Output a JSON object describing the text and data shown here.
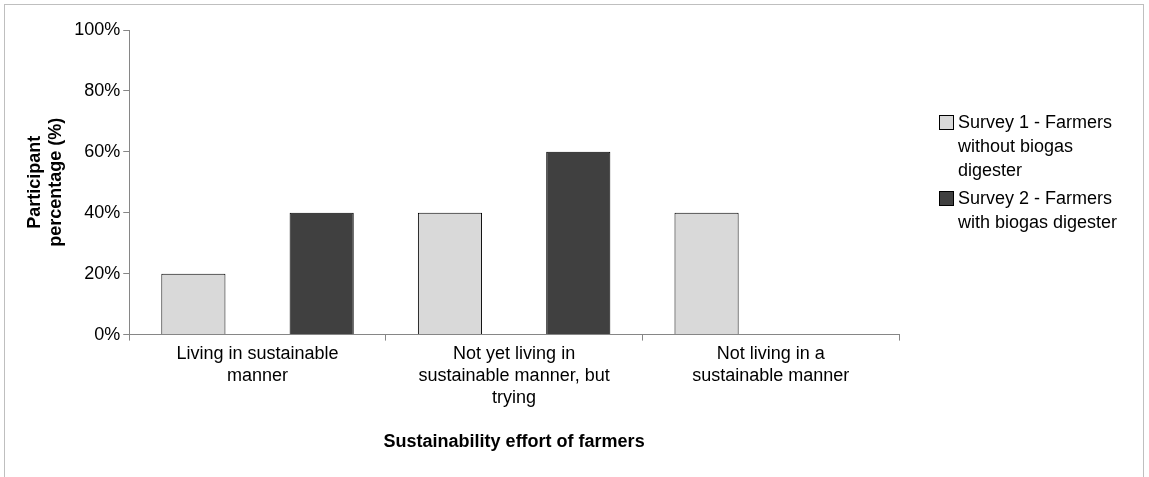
{
  "chart_data": {
    "type": "bar",
    "xlabel": "Sustainability effort of farmers",
    "ylabel": "Participant percentage (%)",
    "categories": [
      "Living in sustainable manner",
      "Not yet living in sustainable manner, but trying",
      "Not living in a sustainable manner"
    ],
    "series": [
      {
        "name": "Survey 1 - Farmers without biogas digester",
        "color": "#d9d9d9",
        "values": [
          20,
          40,
          40
        ]
      },
      {
        "name": "Survey 2 - Farmers with biogas digester",
        "color": "#404040",
        "values": [
          40,
          60,
          0
        ]
      }
    ],
    "ylim": [
      0,
      100
    ],
    "yticks": [
      {
        "value": 0,
        "label": "0%"
      },
      {
        "value": 20,
        "label": "20%"
      },
      {
        "value": 40,
        "label": "40%"
      },
      {
        "value": 60,
        "label": "60%"
      },
      {
        "value": 80,
        "label": "80%"
      },
      {
        "value": 100,
        "label": "100%"
      }
    ],
    "grid": false,
    "legend": "right"
  }
}
